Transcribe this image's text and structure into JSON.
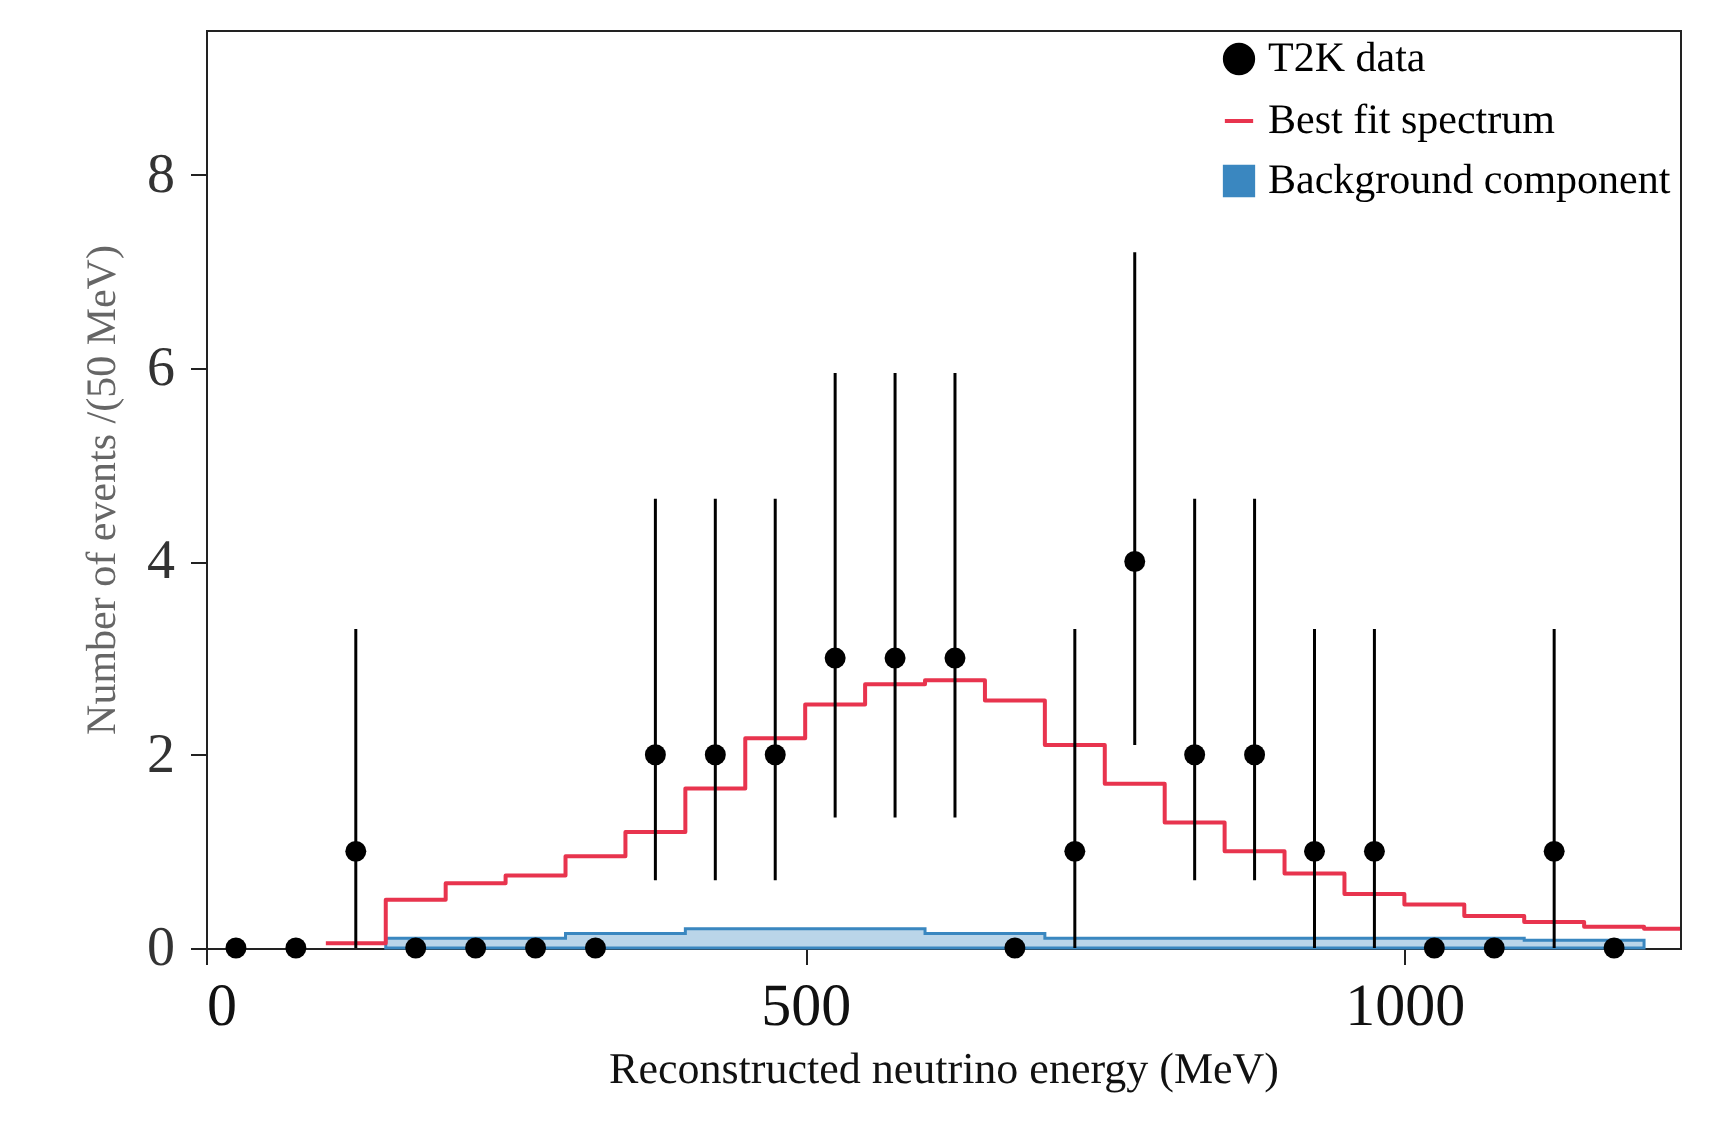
{
  "chart_data": {
    "type": "scatter",
    "xlabel": "Reconstructed neutrino energy (MeV)",
    "ylabel": "Number of events /(50 MeV)",
    "xlim": [
      0,
      1230
    ],
    "ylim": [
      0,
      9.5
    ],
    "xticks": [
      0,
      500,
      1000
    ],
    "yticks": [
      0,
      2,
      4,
      6,
      8
    ],
    "grid": false,
    "legend": "top right",
    "series": [
      {
        "name": "T2K data",
        "marker": "circle",
        "color": "#000000",
        "x": [
          25,
          75,
          125,
          175,
          225,
          275,
          325,
          375,
          425,
          475,
          525,
          575,
          625,
          675,
          725,
          775,
          825,
          875,
          925,
          975,
          1025,
          1075,
          1125,
          1175
        ],
        "values": [
          0,
          0,
          1,
          0,
          0,
          0,
          0,
          2,
          2,
          2,
          3,
          3,
          3,
          0,
          1,
          4,
          2,
          2,
          1,
          1,
          0,
          0,
          1,
          0
        ],
        "errors": [
          null,
          null,
          [
            0,
            3.3
          ],
          null,
          null,
          null,
          null,
          [
            0.7,
            4.65
          ],
          [
            0.7,
            4.65
          ],
          [
            0.7,
            4.65
          ],
          [
            1.35,
            5.95
          ],
          [
            1.35,
            5.95
          ],
          [
            1.35,
            5.95
          ],
          null,
          [
            0,
            3.3
          ],
          [
            2.1,
            7.2
          ],
          [
            0.7,
            4.65
          ],
          [
            0.7,
            4.65
          ],
          [
            0,
            3.3
          ],
          [
            0,
            3.3
          ],
          null,
          null,
          [
            0,
            3.3
          ],
          null
        ]
      },
      {
        "name": "Best fit spectrum",
        "type": "step",
        "color": "#e8344e",
        "x": [
          100,
          150,
          200,
          250,
          300,
          350,
          400,
          450,
          500,
          550,
          600,
          650,
          700,
          750,
          800,
          850,
          900,
          950,
          1000,
          1050,
          1100,
          1150,
          1200,
          1230
        ],
        "values": [
          0.05,
          0.5,
          0.67,
          0.75,
          0.95,
          1.2,
          1.65,
          2.17,
          2.52,
          2.73,
          2.77,
          2.56,
          2.1,
          1.7,
          1.3,
          1.0,
          0.77,
          0.56,
          0.45,
          0.33,
          0.27,
          0.22,
          0.2,
          0.2
        ]
      },
      {
        "name": "Background component",
        "type": "area",
        "color": "#3a87c0",
        "x": [
          150,
          300,
          400,
          600,
          700,
          1100,
          1200
        ],
        "values": [
          0.1,
          0.15,
          0.2,
          0.15,
          0.1,
          0.08,
          0.08
        ]
      }
    ]
  }
}
